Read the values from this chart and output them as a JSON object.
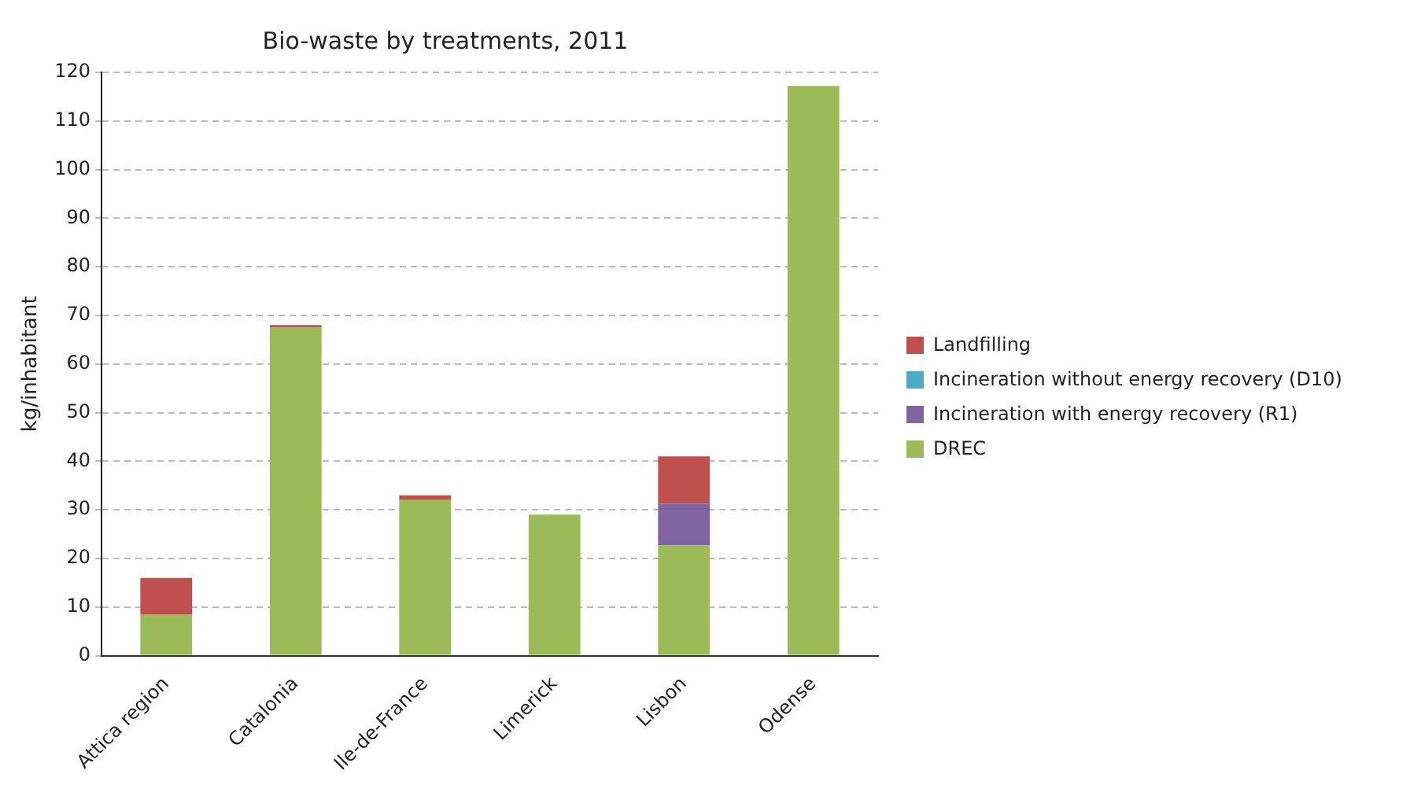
{
  "chart_data": {
    "type": "bar",
    "title": "Bio-waste by treatments, 2011",
    "ylabel": "kg/inhabitant",
    "categories": [
      "Attica region",
      "Catalonia",
      "Ile-de-France",
      "Limerick",
      "Lisbon",
      "Odense"
    ],
    "stacked": true,
    "series": [
      {
        "name": "DREC",
        "color": "#9bbb59",
        "values": [
          8.5,
          67.5,
          32,
          29,
          22.7,
          117.2
        ]
      },
      {
        "name": "Incineration with energy recovery (R1)",
        "color": "#8064a2",
        "values": [
          0,
          0,
          0,
          0,
          8.6,
          0
        ]
      },
      {
        "name": "Incineration without energy recovery (D10)",
        "color": "#4bacc6",
        "values": [
          0,
          0,
          0,
          0,
          0,
          0
        ]
      },
      {
        "name": "Landfilling",
        "color": "#c0504d",
        "values": [
          7.5,
          0.5,
          1,
          0,
          9.7,
          0
        ]
      }
    ],
    "ylim": [
      0,
      120
    ],
    "yticks": [
      0,
      10,
      20,
      30,
      40,
      50,
      60,
      70,
      80,
      90,
      100,
      110,
      120
    ],
    "grid": "y",
    "legend": "right"
  }
}
